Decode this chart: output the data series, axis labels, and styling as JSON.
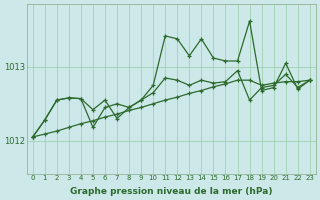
{
  "xlabel": "Graphe pression niveau de la mer (hPa)",
  "bg_color": "#cce8e8",
  "line_color": "#2d6a2d",
  "grid_color": "#99ccaa",
  "yticks": [
    1012,
    1013
  ],
  "ylim": [
    1011.55,
    1013.85
  ],
  "xlim": [
    -0.5,
    23.5
  ],
  "xticks": [
    0,
    1,
    2,
    3,
    4,
    5,
    6,
    7,
    8,
    9,
    10,
    11,
    12,
    13,
    14,
    15,
    16,
    17,
    18,
    19,
    20,
    21,
    22,
    23
  ],
  "series_linear": [
    1012.05,
    1012.09,
    1012.13,
    1012.18,
    1012.23,
    1012.27,
    1012.32,
    1012.36,
    1012.41,
    1012.45,
    1012.5,
    1012.55,
    1012.59,
    1012.64,
    1012.68,
    1012.73,
    1012.77,
    1012.82,
    1012.82,
    1012.75,
    1012.78,
    1012.8,
    1012.8,
    1012.82
  ],
  "series_mid": [
    1012.05,
    1012.28,
    1012.55,
    1012.58,
    1012.57,
    1012.42,
    1012.55,
    1012.3,
    1012.45,
    1012.55,
    1012.65,
    1012.85,
    1012.82,
    1012.75,
    1012.82,
    1012.78,
    1012.8,
    1012.95,
    1012.55,
    1012.72,
    1012.75,
    1012.9,
    1012.72,
    1012.82
  ],
  "series_top": [
    1012.05,
    1012.28,
    1012.55,
    1012.58,
    1012.57,
    1012.18,
    1012.45,
    1012.5,
    1012.45,
    1012.55,
    1012.75,
    1013.42,
    1013.38,
    1013.15,
    1013.38,
    1013.12,
    1013.08,
    1013.08,
    1013.62,
    1012.68,
    1012.72,
    1013.05,
    1012.7,
    1012.82
  ]
}
